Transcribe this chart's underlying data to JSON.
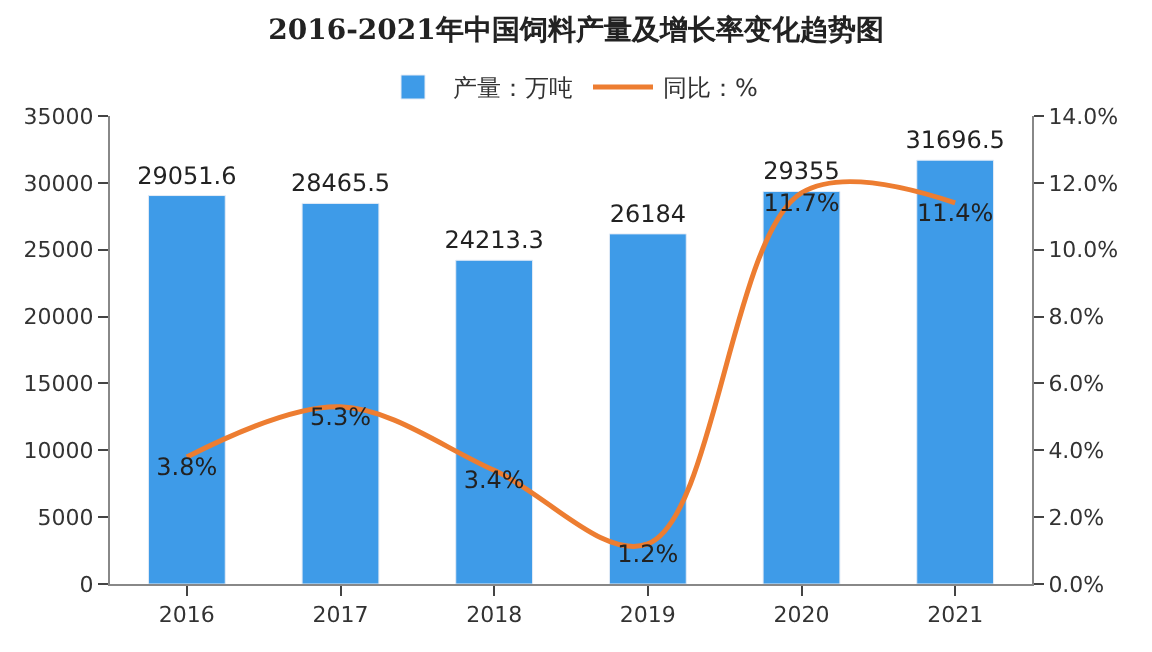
{
  "chart_data": {
    "type": "bar",
    "title": "2016-2021年中国饲料产量及增长率变化趋势图",
    "categories": [
      "2016",
      "2017",
      "2018",
      "2019",
      "2020",
      "2021"
    ],
    "series": [
      {
        "name": "产量：万吨",
        "color": "#3e9be8",
        "values": [
          29051.6,
          28465.5,
          24213.3,
          26184,
          29355,
          31696.5
        ],
        "value_labels": [
          "29051.6",
          "28465.5",
          "24213.3",
          "26184",
          "29355",
          "31696.5"
        ]
      },
      {
        "name": "同比：%",
        "type": "line",
        "axis": "y2",
        "color": "#ed7d31",
        "marker": "none",
        "line_style": "solid",
        "values": [
          3.8,
          5.3,
          3.4,
          1.2,
          11.7,
          11.4
        ],
        "value_labels": [
          "3.8%",
          "5.3%",
          "3.4%",
          "1.2%",
          "11.7%",
          "11.4%"
        ]
      }
    ],
    "ylim": [
      0,
      35000
    ],
    "yticks": [
      0,
      5000,
      10000,
      15000,
      20000,
      25000,
      30000,
      35000
    ],
    "y2lim": [
      0,
      14
    ],
    "y2ticks": [
      {
        "value": 0,
        "label": "0.0%"
      },
      {
        "value": 2,
        "label": "2.0%"
      },
      {
        "value": 4,
        "label": "4.0%"
      },
      {
        "value": 6,
        "label": "6.0%"
      },
      {
        "value": 8,
        "label": "8.0%"
      },
      {
        "value": 10,
        "label": "10.0%"
      },
      {
        "value": 12,
        "label": "12.0%"
      },
      {
        "value": 14,
        "label": "14.0%"
      }
    ],
    "legend": "top"
  }
}
